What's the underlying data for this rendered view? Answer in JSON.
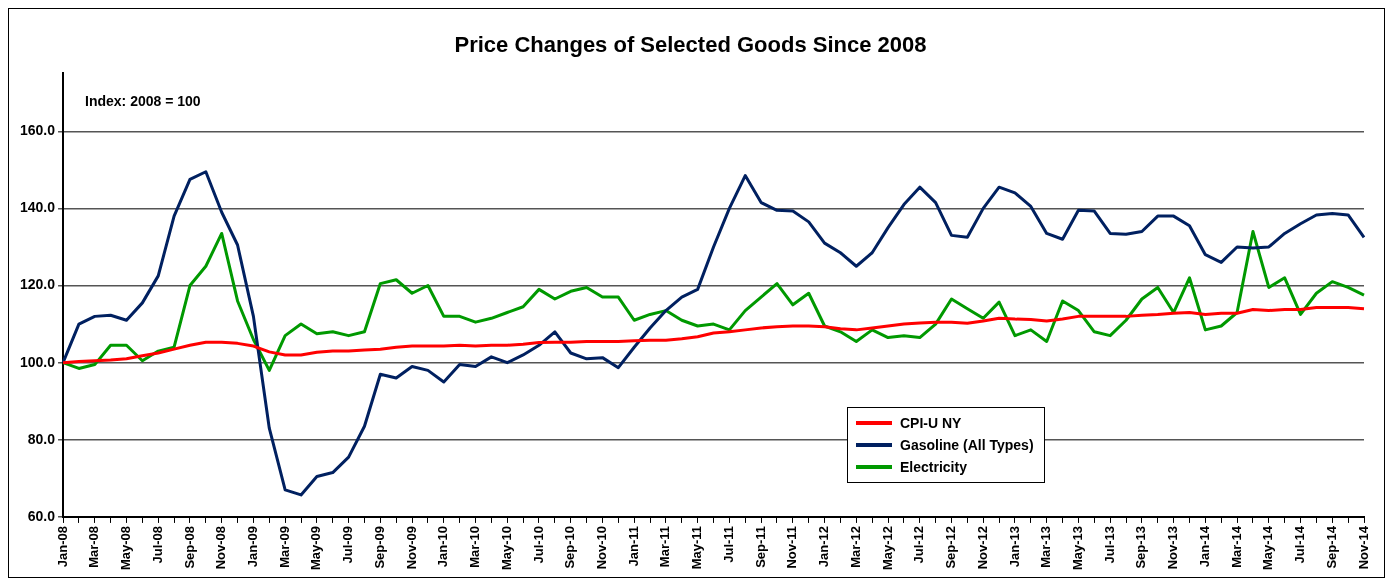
{
  "chart_data": {
    "type": "line",
    "title": "Price Changes of Selected Goods Since 2008",
    "annotations": [
      "Index: 2008 = 100"
    ],
    "categories": [
      "Jan-08",
      null,
      "Mar-08",
      null,
      "May-08",
      null,
      "Jul-08",
      null,
      "Sep-08",
      null,
      "Nov-08",
      null,
      "Jan-09",
      null,
      "Mar-09",
      null,
      "May-09",
      null,
      "Jul-09",
      null,
      "Sep-09",
      null,
      "Nov-09",
      null,
      "Jan-10",
      null,
      "Mar-10",
      null,
      "May-10",
      null,
      "Jul-10",
      null,
      "Sep-10",
      null,
      "Nov-10",
      null,
      "Jan-11",
      null,
      "Mar-11",
      null,
      "May-11",
      null,
      "Jul-11",
      null,
      "Sep-11",
      null,
      "Nov-11",
      null,
      "Jan-12",
      null,
      "Mar-12",
      null,
      "May-12",
      null,
      "Jul-12",
      null,
      "Sep-12",
      null,
      "Nov-12",
      null,
      "Jan-13",
      null,
      "Mar-13",
      null,
      "May-13",
      null,
      "Jul-13",
      null,
      "Sep-13",
      null,
      "Nov-13",
      null,
      "Jan-14",
      null,
      "Mar-14",
      null,
      "May-14",
      null,
      "Jul-14",
      null,
      "Sep-14",
      null,
      "Nov-14"
    ],
    "series": [
      {
        "name": "CPI-U NY",
        "color": "#ff0000",
        "values": [
          100,
          100.3,
          100.5,
          100.7,
          101,
          101.8,
          102.5,
          103.5,
          104.5,
          105.3,
          105.3,
          105,
          104.3,
          102.8,
          102,
          102,
          102.7,
          103,
          103,
          103.3,
          103.5,
          104,
          104.3,
          104.3,
          104.3,
          104.5,
          104.3,
          104.5,
          104.5,
          104.8,
          105.2,
          105.3,
          105.3,
          105.5,
          105.5,
          105.5,
          105.7,
          105.8,
          105.8,
          106.2,
          106.7,
          107.7,
          108,
          108.5,
          109,
          109.3,
          109.5,
          109.5,
          109.3,
          108.8,
          108.5,
          109,
          109.5,
          110,
          110.3,
          110.5,
          110.5,
          110.2,
          110.8,
          111.5,
          111.3,
          111.2,
          110.8,
          111.3,
          112,
          112,
          112,
          112,
          112.3,
          112.5,
          112.8,
          113,
          112.5,
          112.8,
          112.8,
          113.8,
          113.5,
          113.8,
          113.8,
          114.3,
          114.3,
          114.3,
          114
        ]
      },
      {
        "name": "Gasoline (All Types)",
        "color": "#002060",
        "values": [
          100,
          110,
          112,
          112.3,
          111,
          115.5,
          122.5,
          138,
          147.5,
          149.5,
          139,
          130.5,
          112,
          83,
          67,
          65.7,
          70.5,
          71.5,
          75.5,
          83.5,
          97,
          96,
          99,
          98,
          95,
          99.5,
          99,
          101.5,
          100,
          102,
          104.5,
          108,
          102.5,
          101,
          101.3,
          98.7,
          104,
          109,
          113.5,
          117,
          119,
          130,
          140,
          148.5,
          141.5,
          139.5,
          139.3,
          136.5,
          131,
          128.5,
          125,
          128.5,
          135,
          141,
          145.5,
          141.5,
          133,
          132.5,
          140,
          145.5,
          144,
          140.5,
          133.5,
          132,
          139.5,
          139.3,
          133.5,
          133.3,
          134,
          138,
          138,
          135.5,
          128,
          126,
          130,
          129.7,
          130,
          133.5,
          136,
          138.3,
          138.7,
          138.3,
          132.5
        ]
      },
      {
        "name": "Electricity",
        "color": "#009900",
        "values": [
          100,
          98.5,
          99.5,
          104.5,
          104.5,
          100.5,
          103,
          104,
          120,
          125,
          133.5,
          116,
          106,
          98,
          107,
          110,
          107.5,
          108,
          107,
          108,
          120.5,
          121.5,
          118,
          120,
          112,
          112,
          110.5,
          111.5,
          113,
          114.5,
          119,
          116.5,
          118.5,
          119.5,
          117,
          117,
          111,
          112.5,
          113.5,
          111,
          109.5,
          110,
          108.5,
          113.5,
          117,
          120.5,
          115,
          118,
          109.5,
          108,
          105.5,
          108.5,
          106.5,
          107,
          106.5,
          110,
          116.5,
          114,
          111.5,
          115.7,
          107,
          108.5,
          105.5,
          116,
          113.5,
          108,
          107,
          111,
          116.5,
          119.5,
          113,
          122,
          108.5,
          109.5,
          113,
          134,
          119.5,
          122,
          112.5,
          118,
          121,
          119.5,
          117.5
        ]
      }
    ],
    "ylim": [
      60,
      175
    ],
    "yticks": [
      {
        "value": 60,
        "label": "60.0"
      },
      {
        "value": 80,
        "label": "80.0"
      },
      {
        "value": 100,
        "label": "100.0"
      },
      {
        "value": 120,
        "label": "120.0"
      },
      {
        "value": 140,
        "label": "140.0"
      },
      {
        "value": 160,
        "label": "160.0"
      }
    ],
    "grid": "y",
    "legend": "bottom right",
    "marker": "none",
    "line_style": "solid"
  }
}
